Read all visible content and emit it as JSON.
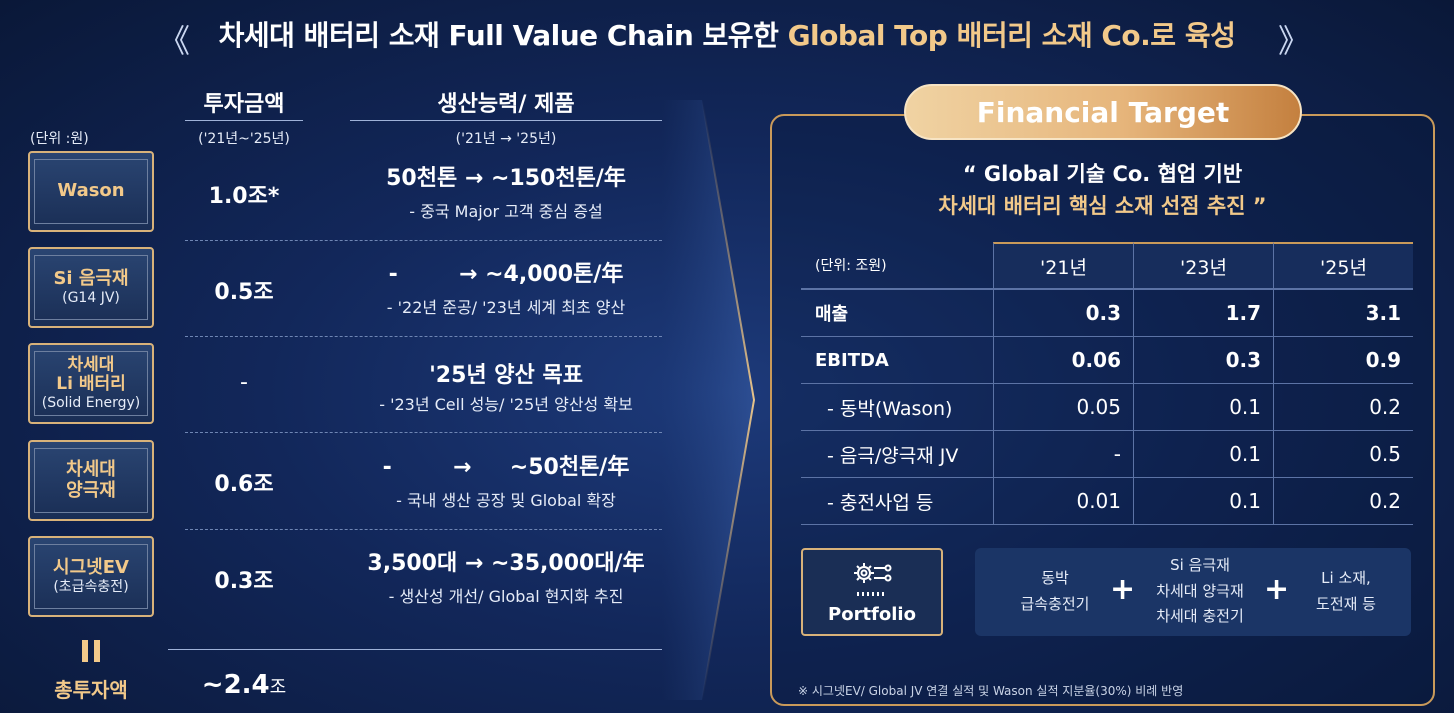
{
  "title": {
    "part1": "차세대 배터리 소재 Full Value Chain 보유한 ",
    "part2": "Global Top 배터리 소재 Co.로 육성",
    "left_chevron": "《",
    "right_chevron": "》"
  },
  "left": {
    "unit": "(단위 :원)",
    "col_invest": {
      "title": "투자금액",
      "period": "('21년~'25년)"
    },
    "col_capacity": {
      "title": "생산능력/ 제품",
      "period": "('21년 → '25년)"
    },
    "rows": [
      {
        "name": "Wason",
        "sub": "",
        "amount": "1.0조*",
        "main": "50천톤 → ~150천톤/年",
        "desc": "- 중국 Major 고객 중심 증설"
      },
      {
        "name": "Si 음극재",
        "sub": "(G14 JV)",
        "amount": "0.5조",
        "main": "-        → ~4,000톤/年",
        "desc": "- '22년 준공/ '23년 세계 최초 양산"
      },
      {
        "name": "차세대\nLi 배터리",
        "sub": "(Solid Energy)",
        "amount": "-",
        "main": "'25년 양산 목표",
        "desc": "- '23년 Cell 성능/ '25년 양산성 확보"
      },
      {
        "name": "차세대\n양극재",
        "sub": "",
        "amount": "0.6조",
        "main": "-        →     ~50천톤/年",
        "desc": "- 국내 생산 공장 및 Global 확장"
      },
      {
        "name": "시그넷EV",
        "sub": "(초급속충전)",
        "amount": "0.3조",
        "main": "3,500대 → ~35,000대/年",
        "desc": "- 생산성 개선/ Global 현지화 추진"
      }
    ],
    "total": {
      "label": "총투자액",
      "amount": "~2.4",
      "unit": "조"
    }
  },
  "right": {
    "badge": "Financial Target",
    "quote_line1": "“ Global 기술 Co. 협업 기반",
    "quote_line2": "차세대 배터리 핵심 소재 선점 추진 ”",
    "unit": "(단위: 조원)",
    "years": [
      "'21년",
      "'23년",
      "'25년"
    ],
    "rows": [
      {
        "label": "매출",
        "values": [
          "0.3",
          "1.7",
          "3.1"
        ],
        "bold": true
      },
      {
        "label": "EBITDA",
        "values": [
          "0.06",
          "0.3",
          "0.9"
        ],
        "bold": true
      },
      {
        "label": "- 동박(Wason)",
        "values": [
          "0.05",
          "0.1",
          "0.2"
        ],
        "bold": false
      },
      {
        "label": "- 음극/양극재 JV",
        "values": [
          "-",
          "0.1",
          "0.5"
        ],
        "bold": false
      },
      {
        "label": "- 충전사업 등",
        "values": [
          "0.01",
          "0.1",
          "0.2"
        ],
        "bold": false
      }
    ],
    "portfolio": {
      "label": "Portfolio",
      "icon": "gear-network-icon"
    },
    "portfolio_groups": [
      {
        "lines": [
          "동박",
          "급속충전기"
        ]
      },
      {
        "lines": [
          "Si 음극재",
          "차세대 양극재",
          "차세대 충전기"
        ]
      },
      {
        "lines": [
          "Li 소재,",
          "도전재 등"
        ]
      }
    ],
    "plus": "+",
    "footnote": "※ 시그넷EV/ Global JV 연결 실적 및 Wason 실적 지분율(30%) 비례 반영"
  },
  "colors": {
    "gold": "#f2c98a",
    "border_gold": "#d8b27a",
    "bg": "#12275a"
  }
}
